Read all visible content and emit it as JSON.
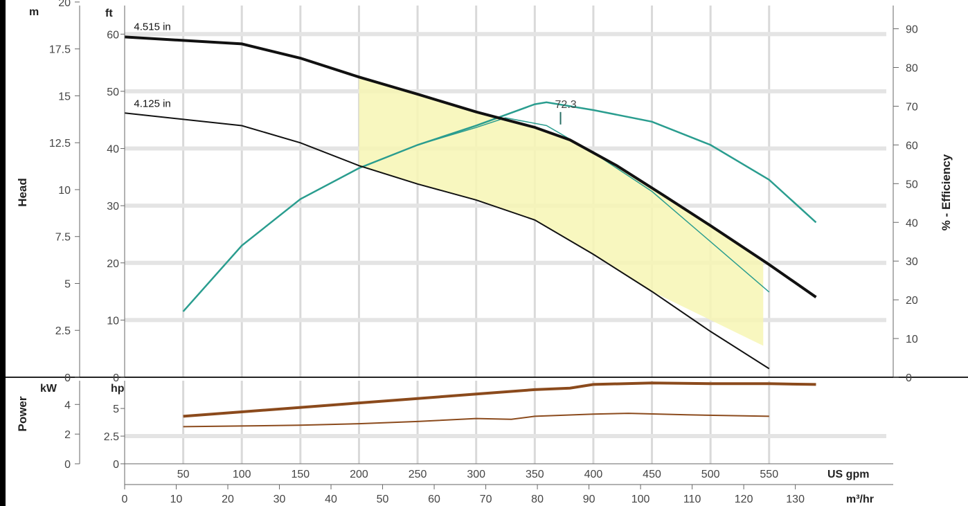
{
  "chart_data": {
    "type": "line",
    "axes": {
      "head_m": {
        "unit": "m",
        "ticks": [
          "0",
          "2.5",
          "5",
          "7.5",
          "10",
          "12.5",
          "15",
          "17.5",
          "20"
        ],
        "values": [
          0,
          2.5,
          5,
          7.5,
          10,
          12.5,
          15,
          17.5,
          20
        ]
      },
      "head_ft": {
        "unit": "ft",
        "ticks": [
          "0",
          "10",
          "20",
          "30",
          "40",
          "50",
          "60"
        ],
        "values": [
          0,
          10,
          20,
          30,
          40,
          50,
          60
        ]
      },
      "efficiency": {
        "label": "% - Efficiency",
        "ticks": [
          "0",
          "10",
          "20",
          "30",
          "40",
          "50",
          "60",
          "70",
          "80",
          "90"
        ],
        "values": [
          0,
          10,
          20,
          30,
          40,
          50,
          60,
          70,
          80,
          90
        ],
        "range": [
          0,
          96
        ]
      },
      "head_label": "Head",
      "power_label": "Power",
      "power_kw": {
        "unit": "kW",
        "ticks": [
          "0",
          "2",
          "4"
        ],
        "values": [
          0,
          2,
          4
        ]
      },
      "power_hp": {
        "unit": "hp",
        "ticks": [
          "0",
          "2.5",
          "5"
        ],
        "values": [
          0,
          2.5,
          5
        ]
      },
      "flow_gpm": {
        "unit": "US gpm",
        "ticks": [
          "50",
          "100",
          "150",
          "200",
          "250",
          "300",
          "350",
          "400",
          "450",
          "500",
          "550"
        ],
        "values": [
          50,
          100,
          150,
          200,
          250,
          300,
          350,
          400,
          450,
          500,
          550
        ]
      },
      "flow_m3hr": {
        "unit": "m³/hr",
        "ticks": [
          "0",
          "10",
          "20",
          "30",
          "40",
          "50",
          "60",
          "70",
          "80",
          "90",
          "100",
          "110",
          "120",
          "130"
        ],
        "values": [
          0,
          10,
          20,
          30,
          40,
          50,
          60,
          70,
          80,
          90,
          100,
          110,
          120,
          130
        ]
      },
      "xlim_gpm": [
        0,
        650
      ],
      "ylim_ft": [
        0,
        65
      ]
    },
    "head_series": [
      {
        "name": "4.515 in",
        "x_gpm": [
          0,
          100,
          150,
          200,
          250,
          300,
          350,
          380,
          420,
          460,
          500,
          550,
          590
        ],
        "y_ft": [
          59.5,
          58.3,
          55.8,
          52.5,
          49.5,
          46.4,
          43.7,
          41.5,
          37.0,
          31.8,
          26.5,
          19.7,
          14.0
        ]
      },
      {
        "name": "4.125 in",
        "x_gpm": [
          0,
          100,
          150,
          200,
          250,
          300,
          350,
          400,
          450,
          500,
          550
        ],
        "y_ft": [
          46.2,
          44.0,
          41.0,
          37.0,
          33.8,
          31.0,
          27.5,
          21.5,
          15.0,
          8.0,
          1.5
        ]
      }
    ],
    "efficiency_series": [
      {
        "x_gpm": [
          50,
          100,
          150,
          200,
          250,
          300,
          350,
          360,
          400,
          450,
          500,
          550,
          590
        ],
        "y_pct": [
          17,
          34,
          46,
          54,
          60,
          65,
          70.5,
          71,
          69,
          66,
          60,
          51,
          40
        ]
      },
      {
        "x_gpm": [
          50,
          100,
          150,
          200,
          250,
          300,
          325,
          360,
          400,
          450,
          500,
          550
        ],
        "y_pct": [
          17,
          34,
          46,
          54,
          60,
          64.5,
          67,
          65,
          58,
          48,
          35,
          22
        ]
      }
    ],
    "bep_label": "72.3",
    "bep_x_gpm": 372,
    "bep_marker_y_ft": 44.2,
    "power_series": [
      {
        "x_gpm": [
          50,
          100,
          150,
          200,
          250,
          300,
          350,
          380,
          400,
          450,
          500,
          550,
          590
        ],
        "y_kw": [
          3.2,
          3.5,
          3.8,
          4.1,
          4.4,
          4.7,
          5.0,
          5.1,
          5.35,
          5.45,
          5.4,
          5.4,
          5.35
        ]
      },
      {
        "x_gpm": [
          50,
          100,
          150,
          200,
          250,
          300,
          330,
          350,
          400,
          430,
          480,
          550
        ],
        "y_kw": [
          2.5,
          2.55,
          2.6,
          2.7,
          2.85,
          3.05,
          3.0,
          3.2,
          3.35,
          3.4,
          3.3,
          3.2
        ]
      }
    ],
    "preferred_region": {
      "label": "",
      "color": "#f7f6b4"
    },
    "colors": {
      "head": "#111111",
      "efficiency": "#2a9d8f",
      "power": "#8b4a1c",
      "grid": "#d9d9d9",
      "region": "#f7f6b4"
    }
  }
}
